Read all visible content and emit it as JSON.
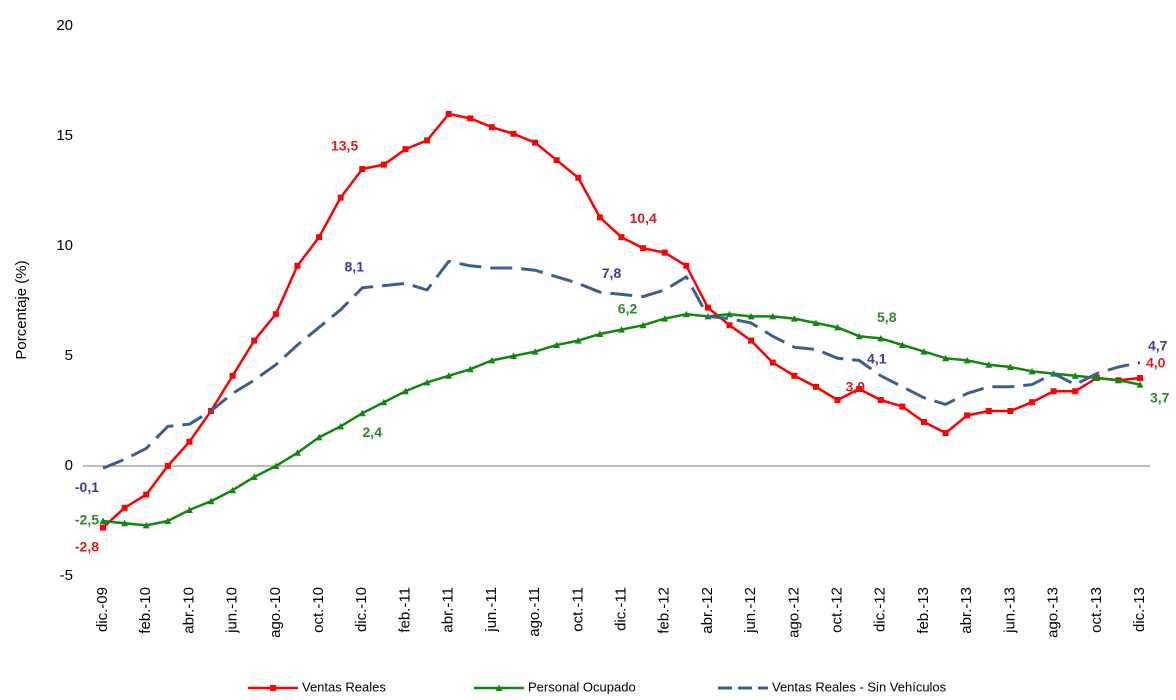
{
  "chart_data": {
    "type": "line",
    "y_label": "Porcentaje (%)",
    "categories": [
      "dic.-09",
      null,
      "feb.-10",
      null,
      "abr.-10",
      null,
      "jun.-10",
      null,
      "ago.-10",
      null,
      "oct.-10",
      null,
      "dic.-10",
      null,
      "feb.-11",
      null,
      "abr.-11",
      null,
      "jun.-11",
      null,
      "ago.-11",
      null,
      "oct.-11",
      null,
      "dic.-11",
      null,
      "feb.-12",
      null,
      "abr.-12",
      null,
      "jun.-12",
      null,
      "ago.-12",
      null,
      "oct.-12",
      null,
      "dic.-12",
      null,
      "feb.-13",
      null,
      "abr.-13",
      null,
      "jun.-13",
      null,
      "ago.-13",
      null,
      "oct.-13",
      null,
      "dic.-13"
    ],
    "series": [
      {
        "name": "Ventas Reales",
        "color": "#ff0000",
        "marker": "square",
        "values": [
          -2.8,
          -1.9,
          -1.3,
          0.0,
          1.1,
          2.5,
          4.1,
          5.7,
          6.9,
          9.1,
          10.4,
          12.2,
          13.5,
          13.7,
          14.4,
          14.8,
          16.0,
          15.8,
          15.4,
          15.1,
          14.7,
          13.9,
          13.1,
          11.3,
          10.4,
          9.9,
          9.7,
          9.1,
          7.2,
          6.4,
          5.7,
          4.7,
          4.1,
          3.6,
          3.0,
          3.5,
          3.0,
          2.7,
          2.0,
          1.5,
          2.3,
          2.5,
          2.5,
          2.9,
          3.4,
          3.4,
          4.0,
          3.9,
          4.0
        ],
        "value_labels": [
          "-2,8",
          null,
          null,
          null,
          null,
          null,
          null,
          null,
          null,
          null,
          null,
          null,
          "13,5",
          null,
          null,
          null,
          null,
          null,
          null,
          null,
          null,
          null,
          null,
          null,
          "10,4",
          null,
          null,
          null,
          null,
          null,
          null,
          null,
          null,
          null,
          "3,0",
          null,
          null,
          null,
          null,
          null,
          null,
          null,
          null,
          null,
          null,
          null,
          null,
          null,
          "4,0"
        ]
      },
      {
        "name": "Personal Ocupado",
        "color": "#12870f",
        "marker": "triangle",
        "values": [
          -2.5,
          -2.6,
          -2.7,
          -2.5,
          -2.0,
          -1.6,
          -1.1,
          -0.5,
          0.0,
          0.6,
          1.3,
          1.8,
          2.4,
          2.9,
          3.4,
          3.8,
          4.1,
          4.4,
          4.8,
          5.0,
          5.2,
          5.5,
          5.7,
          6.0,
          6.2,
          6.4,
          6.7,
          6.9,
          6.8,
          6.9,
          6.8,
          6.8,
          6.7,
          6.5,
          6.3,
          5.9,
          5.8,
          5.5,
          5.2,
          4.9,
          4.8,
          4.6,
          4.5,
          4.3,
          4.2,
          4.1,
          4.0,
          3.9,
          3.7
        ],
        "value_labels": [
          "-2,5",
          null,
          null,
          null,
          null,
          null,
          null,
          null,
          null,
          null,
          null,
          null,
          "2,4",
          null,
          null,
          null,
          null,
          null,
          null,
          null,
          null,
          null,
          null,
          null,
          "6,2",
          null,
          null,
          null,
          null,
          null,
          null,
          null,
          null,
          null,
          null,
          null,
          "5,8",
          null,
          null,
          null,
          null,
          null,
          null,
          null,
          null,
          null,
          null,
          null,
          "3,7"
        ]
      },
      {
        "name": "Ventas Reales - Sin Vehículos",
        "color": "#3e5f8c",
        "marker": "none",
        "dashed": true,
        "values": [
          -0.1,
          0.3,
          0.8,
          1.8,
          1.9,
          2.5,
          3.3,
          3.9,
          4.6,
          5.5,
          6.3,
          7.1,
          8.1,
          8.2,
          8.3,
          8.0,
          9.3,
          9.1,
          9.0,
          9.0,
          8.9,
          8.6,
          8.3,
          7.9,
          7.8,
          7.7,
          8.0,
          8.6,
          6.8,
          6.7,
          6.5,
          5.9,
          5.4,
          5.3,
          4.9,
          4.8,
          4.1,
          3.6,
          3.1,
          2.8,
          3.3,
          3.6,
          3.6,
          3.7,
          4.2,
          3.7,
          4.2,
          4.5,
          4.7
        ],
        "value_labels": [
          "-0,1",
          null,
          null,
          null,
          null,
          null,
          null,
          null,
          null,
          null,
          null,
          null,
          "8,1",
          null,
          null,
          null,
          null,
          null,
          null,
          null,
          null,
          null,
          null,
          null,
          "7,8",
          null,
          null,
          null,
          null,
          null,
          null,
          null,
          null,
          null,
          null,
          null,
          "4,1",
          null,
          null,
          null,
          null,
          null,
          null,
          null,
          null,
          null,
          null,
          null,
          "4,7"
        ]
      }
    ],
    "ylim": [
      -5,
      20
    ],
    "yticks": [
      -5,
      0,
      5,
      10,
      15,
      20
    ],
    "grid": false,
    "legend": "bottom"
  }
}
